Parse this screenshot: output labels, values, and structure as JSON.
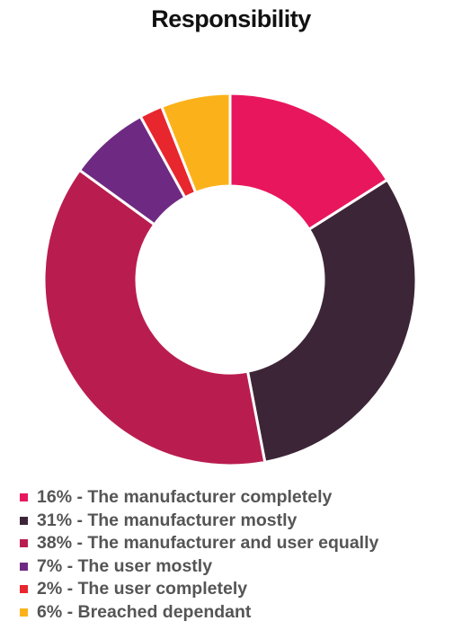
{
  "chart_data": {
    "type": "pie",
    "title": "Responsibility",
    "legend_position": "bottom",
    "slices": [
      {
        "label": "16% - The manufacturer completely",
        "value": 16,
        "color": "#E8175D"
      },
      {
        "label": "31% - The manufacturer mostly",
        "value": 31,
        "color": "#3D2538"
      },
      {
        "label": "38% - The manufacturer and user equally",
        "value": 38,
        "color": "#B91D4F"
      },
      {
        "label": "7% - The user mostly",
        "value": 7,
        "color": "#6E2A82"
      },
      {
        "label": "2% - The user completely",
        "value": 2,
        "color": "#E8262D"
      },
      {
        "label": "6% - Breached dependant",
        "value": 6,
        "color": "#FBB21A"
      }
    ]
  }
}
